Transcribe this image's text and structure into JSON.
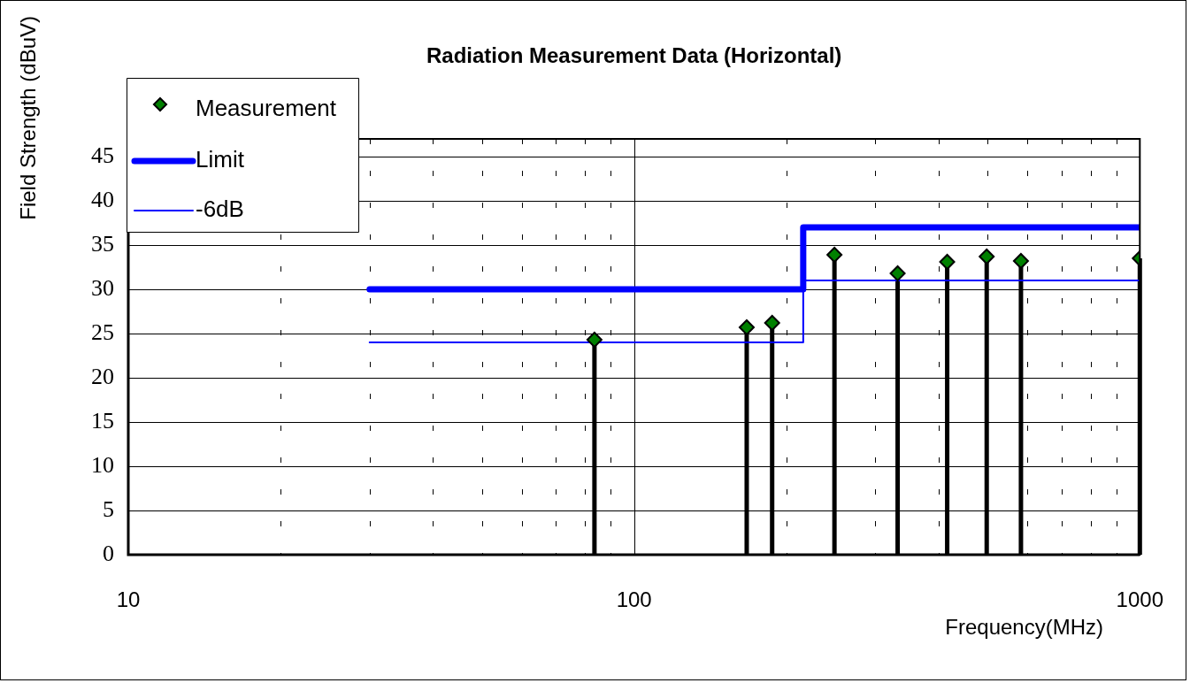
{
  "chart_data": {
    "type": "lollipop",
    "title": "Radiation Measurement Data (Horizontal)",
    "xlabel": "Frequency(MHz)",
    "ylabel": "Field Strength (dBuV)",
    "log": "x",
    "grid": true,
    "legend": "top left",
    "xlim": [
      10,
      1000
    ],
    "xticks": [
      10,
      {
        "value": 20,
        "label": null
      },
      {
        "value": 30,
        "label": null
      },
      {
        "value": 40,
        "label": null
      },
      {
        "value": 50,
        "label": null
      },
      {
        "value": 60,
        "label": null
      },
      {
        "value": 70,
        "label": null
      },
      {
        "value": 80,
        "label": null
      },
      {
        "value": 90,
        "label": null
      },
      100,
      {
        "value": 200,
        "label": null
      },
      {
        "value": 300,
        "label": null
      },
      {
        "value": 400,
        "label": null
      },
      {
        "value": 500,
        "label": null
      },
      {
        "value": 600,
        "label": null
      },
      {
        "value": 700,
        "label": null
      },
      {
        "value": 800,
        "label": null
      },
      {
        "value": 900,
        "label": null
      },
      1000
    ],
    "ylim": [
      0,
      47
    ],
    "yticks": [
      0,
      5,
      10,
      15,
      20,
      25,
      30,
      35,
      40,
      45
    ],
    "series": [
      {
        "name": "Measurement",
        "type": "lollipop",
        "marker": "diamond",
        "color": "#008000",
        "x": [
          83.5,
          167,
          187.5,
          249,
          332,
          416,
          498,
          582,
          1000
        ],
        "values": [
          24.3,
          25.7,
          26.2,
          33.9,
          31.8,
          33.1,
          33.7,
          33.2,
          33.5
        ]
      },
      {
        "name": "Limit",
        "type": "line",
        "color": "#0000ff",
        "x": [
          30,
          216,
          216,
          1000
        ],
        "values": [
          30,
          30,
          37,
          37
        ]
      },
      {
        "name": "-6dB",
        "type": "line",
        "color": "#0000ff",
        "x": [
          30,
          216,
          216,
          1000
        ],
        "values": [
          24,
          24,
          31,
          31
        ]
      }
    ]
  }
}
